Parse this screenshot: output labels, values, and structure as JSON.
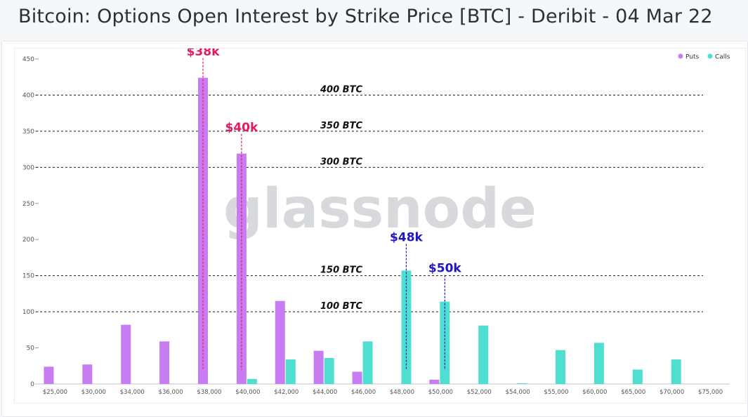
{
  "page_title": "Bitcoin: Options Open Interest by Strike Price [BTC] - Deribit - 04 Mar 22",
  "watermark": "glassnode",
  "colors": {
    "puts": "#c77cf2",
    "calls": "#4fdfd0",
    "put_annotation": "#e8185f",
    "call_annotation": "#1f14c9",
    "grid_dashed": "#222222",
    "axis_text": "#555555"
  },
  "chart_data": {
    "type": "bar",
    "title": "Bitcoin: Options Open Interest by Strike Price [BTC] - Deribit - 04 Mar 22",
    "xlabel": "",
    "ylabel": "",
    "ylim": [
      0,
      450
    ],
    "yticks": [
      0,
      50,
      100,
      150,
      200,
      250,
      300,
      350,
      400,
      450
    ],
    "categories": [
      "$25,000",
      "$30,000",
      "$34,000",
      "$36,000",
      "$38,000",
      "$40,000",
      "$42,000",
      "$44,000",
      "$46,000",
      "$48,000",
      "$50,000",
      "$52,000",
      "$54,000",
      "$55,000",
      "$60,000",
      "$65,000",
      "$70,000",
      "$75,000"
    ],
    "series": [
      {
        "name": "Puts",
        "values": [
          24,
          27,
          82,
          59,
          424,
          319,
          115,
          46,
          17,
          0,
          6,
          0,
          0,
          0,
          0,
          0,
          0,
          0
        ]
      },
      {
        "name": "Calls",
        "values": [
          0,
          0,
          0,
          0,
          0,
          7,
          34,
          36,
          59,
          157,
          114,
          81,
          1,
          47,
          57,
          20,
          34,
          0
        ]
      }
    ],
    "legend": {
      "position": "top-right",
      "entries": [
        "Puts",
        "Calls"
      ]
    },
    "reference_lines": [
      {
        "value": 400,
        "label": "400 BTC"
      },
      {
        "value": 350,
        "label": "350 BTC"
      },
      {
        "value": 300,
        "label": "300 BTC"
      },
      {
        "value": 150,
        "label": "150 BTC"
      },
      {
        "value": 100,
        "label": "100 BTC"
      }
    ],
    "annotations": [
      {
        "label": "$38k",
        "category": "$38,000",
        "series": "Puts"
      },
      {
        "label": "$40k",
        "category": "$40,000",
        "series": "Puts"
      },
      {
        "label": "$48k",
        "category": "$48,000",
        "series": "Calls"
      },
      {
        "label": "$50k",
        "category": "$50,000",
        "series": "Calls"
      }
    ]
  }
}
